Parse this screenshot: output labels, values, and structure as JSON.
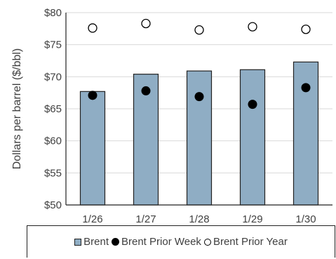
{
  "chart_data": {
    "type": "bar",
    "title": "",
    "xlabel": "",
    "ylabel": "Dollars per barrel ($/bbl)",
    "categories": [
      "1/26",
      "1/27",
      "1/28",
      "1/29",
      "1/30"
    ],
    "ylim": [
      50,
      80
    ],
    "yticks": [
      "$50",
      "$55",
      "$60",
      "$65",
      "$70",
      "$75",
      "$80"
    ],
    "ytick_values": [
      50,
      55,
      60,
      65,
      70,
      75,
      80
    ],
    "grid": true,
    "legend_position": "bottom",
    "series": [
      {
        "name": "Brent",
        "type": "bar",
        "color": "#8fadc4",
        "values": [
          67.7,
          70.4,
          70.9,
          71.1,
          72.3
        ]
      },
      {
        "name": "Brent Prior Week",
        "type": "marker-filled",
        "color": "#000000",
        "values": [
          67.1,
          67.8,
          66.9,
          65.7,
          68.3
        ]
      },
      {
        "name": "Brent Prior Year",
        "type": "marker-open",
        "color": "#000000",
        "values": [
          77.6,
          78.3,
          77.3,
          77.8,
          77.4
        ]
      }
    ]
  }
}
